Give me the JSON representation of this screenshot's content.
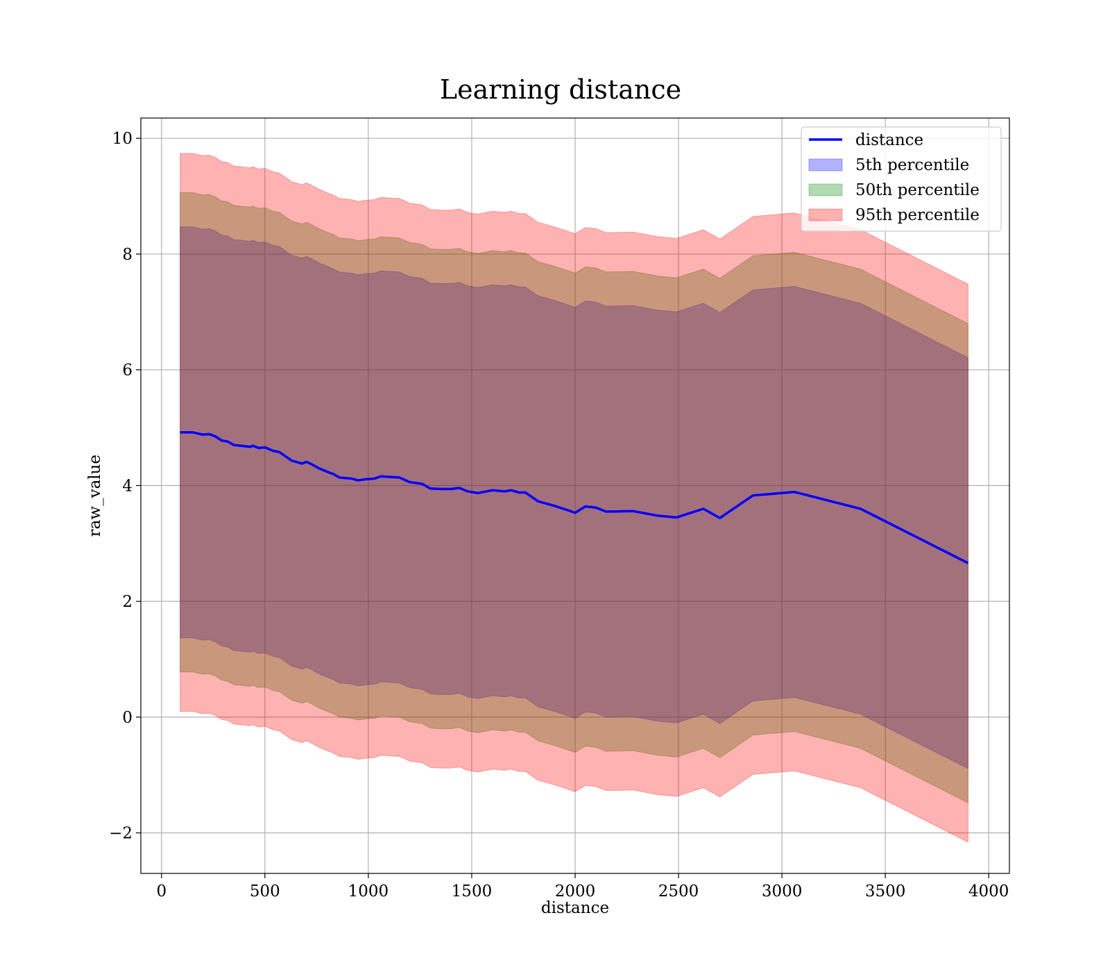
{
  "chart_data": {
    "type": "area",
    "title": "Learning distance",
    "xlabel": "distance",
    "ylabel": "raw_value",
    "xlim": [
      -100,
      4100
    ],
    "ylim": [
      -2.7,
      10.35
    ],
    "xticks": [
      0,
      500,
      1000,
      1500,
      2000,
      2500,
      3000,
      3500,
      4000
    ],
    "yticks": [
      -2,
      0,
      2,
      4,
      6,
      8,
      10
    ],
    "xtick_labels": [
      "0",
      "500",
      "1000",
      "1500",
      "2000",
      "2500",
      "3000",
      "3500",
      "4000"
    ],
    "ytick_labels": [
      "−2",
      "0",
      "2",
      "4",
      "6",
      "8",
      "10"
    ],
    "grid": true,
    "legend_position": "top-right",
    "x": [
      90,
      150,
      200,
      230,
      260,
      290,
      320,
      350,
      380,
      430,
      440,
      470,
      500,
      540,
      570,
      630,
      680,
      700,
      720,
      760,
      800,
      830,
      860,
      890,
      920,
      950,
      990,
      1030,
      1060,
      1100,
      1150,
      1200,
      1260,
      1300,
      1350,
      1400,
      1440,
      1480,
      1530,
      1600,
      1660,
      1690,
      1730,
      1760,
      1820,
      1900,
      1960,
      2000,
      2050,
      2100,
      2150,
      2280,
      2400,
      2490,
      2620,
      2700,
      2860,
      3060,
      3380,
      3900
    ],
    "series": [
      {
        "name": "distance",
        "kind": "line",
        "color": "#0000ff",
        "values": [
          4.92,
          4.92,
          4.88,
          4.89,
          4.85,
          4.78,
          4.76,
          4.7,
          4.69,
          4.67,
          4.69,
          4.65,
          4.66,
          4.6,
          4.58,
          4.43,
          4.38,
          4.41,
          4.38,
          4.3,
          4.24,
          4.2,
          4.14,
          4.13,
          4.12,
          4.09,
          4.11,
          4.12,
          4.16,
          4.15,
          4.14,
          4.06,
          4.03,
          3.95,
          3.94,
          3.94,
          3.96,
          3.9,
          3.87,
          3.92,
          3.9,
          3.92,
          3.88,
          3.88,
          3.73,
          3.65,
          3.58,
          3.53,
          3.64,
          3.62,
          3.55,
          3.56,
          3.48,
          3.45,
          3.6,
          3.44,
          3.83,
          3.89,
          3.6,
          2.66
        ]
      },
      {
        "name": "5th percentile",
        "kind": "band",
        "color": "#0000ff",
        "lower": [
          1.37,
          1.37,
          1.33,
          1.34,
          1.3,
          1.23,
          1.21,
          1.15,
          1.14,
          1.12,
          1.14,
          1.1,
          1.11,
          1.05,
          1.03,
          0.88,
          0.83,
          0.86,
          0.83,
          0.75,
          0.69,
          0.65,
          0.59,
          0.58,
          0.57,
          0.54,
          0.56,
          0.57,
          0.61,
          0.6,
          0.59,
          0.51,
          0.48,
          0.4,
          0.39,
          0.39,
          0.41,
          0.35,
          0.32,
          0.37,
          0.35,
          0.37,
          0.33,
          0.33,
          0.18,
          0.1,
          0.03,
          -0.02,
          0.09,
          0.07,
          0.0,
          0.01,
          -0.07,
          -0.1,
          0.05,
          -0.11,
          0.28,
          0.34,
          0.05,
          -0.89
        ],
        "upper": [
          8.47,
          8.47,
          8.43,
          8.44,
          8.4,
          8.33,
          8.31,
          8.25,
          8.24,
          8.22,
          8.24,
          8.2,
          8.21,
          8.15,
          8.13,
          7.98,
          7.93,
          7.96,
          7.93,
          7.85,
          7.79,
          7.75,
          7.69,
          7.68,
          7.67,
          7.64,
          7.66,
          7.67,
          7.71,
          7.7,
          7.69,
          7.61,
          7.58,
          7.5,
          7.49,
          7.49,
          7.51,
          7.45,
          7.42,
          7.47,
          7.45,
          7.47,
          7.43,
          7.43,
          7.28,
          7.2,
          7.13,
          7.08,
          7.19,
          7.17,
          7.1,
          7.11,
          7.03,
          7.0,
          7.15,
          6.99,
          7.38,
          7.44,
          7.15,
          6.21
        ]
      },
      {
        "name": "50th percentile",
        "kind": "band",
        "color": "#008000",
        "lower": [
          0.78,
          0.78,
          0.74,
          0.75,
          0.71,
          0.64,
          0.62,
          0.56,
          0.55,
          0.53,
          0.55,
          0.51,
          0.52,
          0.46,
          0.44,
          0.29,
          0.24,
          0.27,
          0.24,
          0.16,
          0.1,
          0.06,
          0.0,
          -0.01,
          -0.02,
          -0.05,
          -0.03,
          -0.02,
          0.02,
          0.01,
          0.0,
          -0.08,
          -0.11,
          -0.19,
          -0.2,
          -0.2,
          -0.18,
          -0.24,
          -0.27,
          -0.22,
          -0.24,
          -0.22,
          -0.26,
          -0.26,
          -0.41,
          -0.49,
          -0.56,
          -0.61,
          -0.5,
          -0.52,
          -0.59,
          -0.58,
          -0.66,
          -0.69,
          -0.54,
          -0.7,
          -0.31,
          -0.25,
          -0.54,
          -1.48
        ],
        "upper": [
          9.06,
          9.06,
          9.02,
          9.03,
          8.99,
          8.92,
          8.9,
          8.84,
          8.83,
          8.81,
          8.83,
          8.79,
          8.8,
          8.74,
          8.72,
          8.57,
          8.52,
          8.55,
          8.52,
          8.44,
          8.38,
          8.34,
          8.28,
          8.27,
          8.26,
          8.23,
          8.25,
          8.26,
          8.3,
          8.29,
          8.28,
          8.2,
          8.17,
          8.09,
          8.08,
          8.08,
          8.1,
          8.04,
          8.01,
          8.06,
          8.04,
          8.06,
          8.02,
          8.02,
          7.87,
          7.79,
          7.72,
          7.67,
          7.78,
          7.76,
          7.69,
          7.7,
          7.62,
          7.59,
          7.74,
          7.58,
          7.97,
          8.03,
          7.74,
          6.8
        ]
      },
      {
        "name": "95th percentile",
        "kind": "band",
        "color": "#ff0000",
        "lower": [
          0.1,
          0.1,
          0.06,
          0.07,
          0.03,
          -0.04,
          -0.06,
          -0.12,
          -0.13,
          -0.15,
          -0.13,
          -0.17,
          -0.16,
          -0.22,
          -0.24,
          -0.39,
          -0.44,
          -0.41,
          -0.44,
          -0.52,
          -0.58,
          -0.62,
          -0.68,
          -0.69,
          -0.7,
          -0.73,
          -0.71,
          -0.7,
          -0.66,
          -0.67,
          -0.68,
          -0.76,
          -0.79,
          -0.87,
          -0.88,
          -0.88,
          -0.86,
          -0.92,
          -0.95,
          -0.9,
          -0.92,
          -0.9,
          -0.94,
          -0.94,
          -1.09,
          -1.17,
          -1.24,
          -1.29,
          -1.18,
          -1.2,
          -1.27,
          -1.26,
          -1.34,
          -1.37,
          -1.22,
          -1.38,
          -0.99,
          -0.93,
          -1.22,
          -2.16
        ],
        "upper": [
          9.74,
          9.74,
          9.7,
          9.71,
          9.67,
          9.6,
          9.58,
          9.52,
          9.51,
          9.49,
          9.51,
          9.47,
          9.48,
          9.42,
          9.4,
          9.25,
          9.2,
          9.23,
          9.2,
          9.12,
          9.06,
          9.02,
          8.96,
          8.95,
          8.94,
          8.91,
          8.93,
          8.94,
          8.98,
          8.97,
          8.96,
          8.88,
          8.85,
          8.77,
          8.76,
          8.76,
          8.78,
          8.72,
          8.69,
          8.74,
          8.72,
          8.74,
          8.7,
          8.7,
          8.55,
          8.47,
          8.4,
          8.35,
          8.46,
          8.44,
          8.37,
          8.38,
          8.3,
          8.27,
          8.42,
          8.26,
          8.65,
          8.71,
          8.42,
          7.48
        ]
      }
    ]
  }
}
